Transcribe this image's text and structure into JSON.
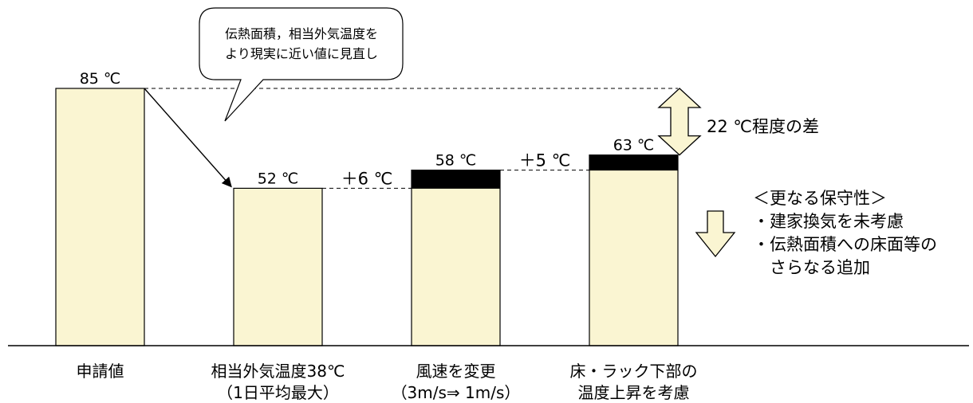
{
  "chart_data": {
    "type": "bar",
    "unit": "℃",
    "categories": [
      [
        "申請値"
      ],
      [
        "相当外気温度38℃",
        "（1日平均最大）"
      ],
      [
        "風速を変更",
        "（3m/s⇒ 1m/s）"
      ],
      [
        "床・ラック下部の",
        "温度上昇を考慮"
      ]
    ],
    "values": [
      85,
      52,
      58,
      63
    ],
    "increments": [
      0,
      0,
      6,
      5
    ],
    "value_labels": [
      "85 ℃",
      "52 ℃",
      "58 ℃",
      "63 ℃"
    ],
    "step_labels": [
      "＋6 ℃",
      "＋5 ℃"
    ],
    "callout": [
      "伝熱面積，相当外気温度を",
      "より現実に近い値に見直し"
    ],
    "difference_label": "22 ℃程度の差",
    "colors": {
      "bar_fill": "#FAF5D2",
      "increment_fill": "#000000",
      "arrow_fill": "#FAF5D2",
      "outline": "#000000"
    }
  },
  "side_note": {
    "title": "＜更なる保守性＞",
    "items": [
      "・建家換気を未考慮",
      "・伝熱面積への床面等の"
    ],
    "continuation": "さらなる追加"
  }
}
